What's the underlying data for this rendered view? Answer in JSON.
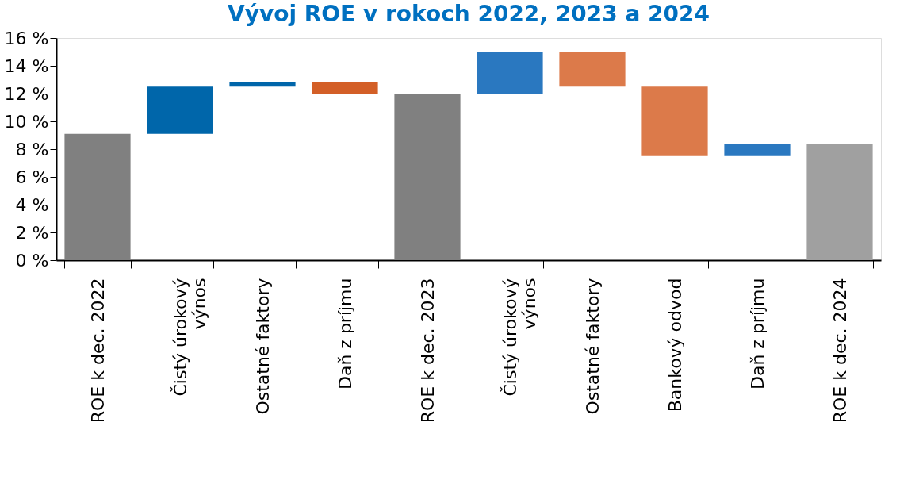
{
  "chart_data": {
    "type": "bar",
    "title": "Vývoj ROE v rokoch 2022, 2023 a 2024",
    "categories": [
      "ROE k dec. 2022",
      "Čistý úrokový výnos",
      "Ostatné faktory",
      "Daň z príjmu",
      "ROE  k dec. 2023",
      "Čistý úrokový výnos",
      "Ostatné faktory",
      "Bankový odvod",
      "Daň z príjmu",
      "ROE k dec. 2024"
    ],
    "values": [
      9.1,
      3.4,
      0.3,
      -0.8,
      12.0,
      3.0,
      -2.5,
      -5.0,
      0.9,
      8.4
    ],
    "base": [
      0,
      9.1,
      12.5,
      12.8,
      0,
      12.0,
      15.0,
      12.5,
      7.5,
      0
    ],
    "colors": [
      "#808080",
      "#0066aa",
      "#0066aa",
      "#d35f27",
      "#808080",
      "#2a78c0",
      "#dc7a4a",
      "#dc7a4a",
      "#2a78c0",
      "#a0a0a0"
    ],
    "ylim": [
      0,
      16
    ],
    "yticks": [
      {
        "value": 0,
        "label": "0 %"
      },
      {
        "value": 2,
        "label": "2 %"
      },
      {
        "value": 4,
        "label": "4 %"
      },
      {
        "value": 6,
        "label": "6 %"
      },
      {
        "value": 8,
        "label": "8 %"
      },
      {
        "value": 10,
        "label": "10 %"
      },
      {
        "value": 12,
        "label": "12 %"
      },
      {
        "value": 14,
        "label": "14 %"
      },
      {
        "value": 16,
        "label": "16 %"
      }
    ]
  }
}
